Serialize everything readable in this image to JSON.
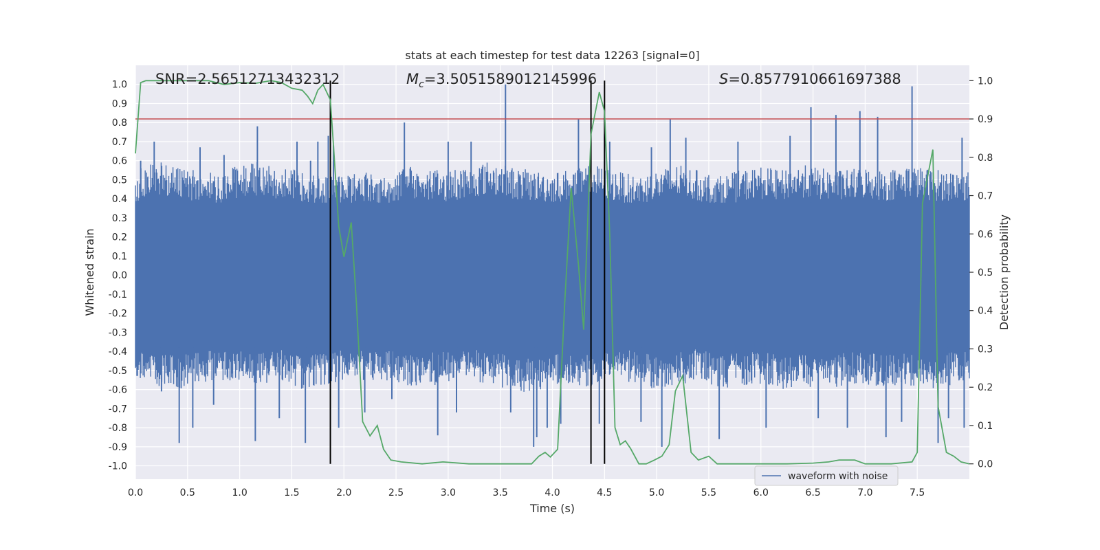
{
  "chart_data": {
    "type": "line",
    "title": "stats at each timestep for test data 12263 [signal=0]",
    "xlabel": "Time (s)",
    "ylabel": "Whitened strain",
    "y2label": "Detection probability",
    "xlim": [
      0.0,
      8.0
    ],
    "ylim": [
      -1.07,
      1.1
    ],
    "y2lim": [
      -0.04,
      1.04
    ],
    "xticks": [
      0.0,
      0.5,
      1.0,
      1.5,
      2.0,
      2.5,
      3.0,
      3.5,
      4.0,
      4.5,
      5.0,
      5.5,
      6.0,
      6.5,
      7.0,
      7.5
    ],
    "xtick_labels": [
      "0.0",
      "0.5",
      "1.0",
      "1.5",
      "2.0",
      "2.5",
      "3.0",
      "3.5",
      "4.0",
      "4.5",
      "5.0",
      "5.5",
      "6.0",
      "6.5",
      "7.0",
      "7.5"
    ],
    "yticks": [
      1.0,
      0.9,
      0.8,
      0.7,
      0.6,
      0.5,
      0.4,
      0.3,
      0.2,
      0.1,
      0.0,
      -0.1,
      -0.2,
      -0.3,
      -0.4,
      -0.5,
      -0.6,
      -0.7,
      -0.8,
      -0.9,
      -1.0
    ],
    "ytick_labels": [
      "1.0",
      "0.9",
      "0.8",
      "0.7",
      "0.6",
      "0.5",
      "0.4",
      "0.3",
      "0.2",
      "0.1",
      "0.0",
      "-0.1",
      "-0.2",
      "-0.3",
      "-0.4",
      "-0.5",
      "-0.6",
      "-0.7",
      "-0.8",
      "-0.9",
      "-1.0"
    ],
    "y2ticks": [
      1.0,
      0.9,
      0.8,
      0.7,
      0.6,
      0.5,
      0.4,
      0.3,
      0.2,
      0.1,
      0.0
    ],
    "y2tick_labels": [
      "1.0",
      "0.9",
      "0.8",
      "0.7",
      "0.6",
      "0.5",
      "0.4",
      "0.3",
      "0.2",
      "0.1",
      "0.0"
    ],
    "grid": true,
    "legend_position": "lower-right",
    "annotations": {
      "snr": "SNR=2.56512713432312",
      "mc_symbol": "M",
      "mc_sub": "c",
      "mc_value": "=3.5051589012145996",
      "s_symbol": "S",
      "s_value": "=0.8577910661697388"
    },
    "threshold": {
      "value": 0.9,
      "axis": "right",
      "color": "#c44e52"
    },
    "vertical_lines": [
      1.87,
      4.37,
      4.5
    ],
    "series": [
      {
        "name": "waveform with noise",
        "axis": "left",
        "color": "#4c72b0",
        "envelope_upper": [
          [
            0.0,
            0.55
          ],
          [
            0.2,
            0.6
          ],
          [
            0.4,
            0.57
          ],
          [
            0.6,
            0.55
          ],
          [
            0.8,
            0.54
          ],
          [
            1.0,
            0.58
          ],
          [
            1.2,
            0.6
          ],
          [
            1.4,
            0.56
          ],
          [
            1.6,
            0.55
          ],
          [
            1.8,
            0.52
          ],
          [
            2.0,
            0.53
          ],
          [
            2.2,
            0.55
          ],
          [
            2.4,
            0.52
          ],
          [
            2.6,
            0.57
          ],
          [
            2.8,
            0.56
          ],
          [
            3.0,
            0.55
          ],
          [
            3.2,
            0.58
          ],
          [
            3.4,
            0.6
          ],
          [
            3.6,
            0.57
          ],
          [
            3.8,
            0.55
          ],
          [
            4.0,
            0.54
          ],
          [
            4.2,
            0.56
          ],
          [
            4.4,
            0.58
          ],
          [
            4.6,
            0.55
          ],
          [
            4.8,
            0.52
          ],
          [
            5.0,
            0.55
          ],
          [
            5.2,
            0.58
          ],
          [
            5.4,
            0.55
          ],
          [
            5.6,
            0.52
          ],
          [
            5.8,
            0.55
          ],
          [
            6.0,
            0.57
          ],
          [
            6.2,
            0.55
          ],
          [
            6.4,
            0.58
          ],
          [
            6.6,
            0.56
          ],
          [
            6.8,
            0.55
          ],
          [
            7.0,
            0.57
          ],
          [
            7.2,
            0.55
          ],
          [
            7.4,
            0.58
          ],
          [
            7.6,
            0.56
          ],
          [
            7.8,
            0.55
          ],
          [
            8.0,
            0.55
          ]
        ],
        "envelope_lower": [
          [
            0.0,
            -0.55
          ],
          [
            0.2,
            -0.58
          ],
          [
            0.4,
            -0.6
          ],
          [
            0.6,
            -0.57
          ],
          [
            0.8,
            -0.55
          ],
          [
            1.0,
            -0.56
          ],
          [
            1.2,
            -0.58
          ],
          [
            1.4,
            -0.55
          ],
          [
            1.6,
            -0.6
          ],
          [
            1.8,
            -0.58
          ],
          [
            2.0,
            -0.55
          ],
          [
            2.2,
            -0.57
          ],
          [
            2.4,
            -0.55
          ],
          [
            2.6,
            -0.6
          ],
          [
            2.8,
            -0.58
          ],
          [
            3.0,
            -0.57
          ],
          [
            3.2,
            -0.55
          ],
          [
            3.4,
            -0.58
          ],
          [
            3.6,
            -0.6
          ],
          [
            3.8,
            -0.62
          ],
          [
            4.0,
            -0.58
          ],
          [
            4.2,
            -0.6
          ],
          [
            4.4,
            -0.58
          ],
          [
            4.6,
            -0.55
          ],
          [
            4.8,
            -0.57
          ],
          [
            5.0,
            -0.6
          ],
          [
            5.2,
            -0.58
          ],
          [
            5.4,
            -0.55
          ],
          [
            5.6,
            -0.6
          ],
          [
            5.8,
            -0.58
          ],
          [
            6.0,
            -0.57
          ],
          [
            6.2,
            -0.6
          ],
          [
            6.4,
            -0.58
          ],
          [
            6.6,
            -0.6
          ],
          [
            6.8,
            -0.58
          ],
          [
            7.0,
            -0.57
          ],
          [
            7.2,
            -0.6
          ],
          [
            7.4,
            -0.58
          ],
          [
            7.6,
            -0.6
          ],
          [
            7.8,
            -0.58
          ],
          [
            8.0,
            -0.57
          ]
        ],
        "spikes": [
          [
            0.05,
            0.6
          ],
          [
            0.18,
            0.7
          ],
          [
            0.25,
            -0.61
          ],
          [
            0.42,
            -0.88
          ],
          [
            0.55,
            -0.8
          ],
          [
            0.62,
            0.67
          ],
          [
            0.75,
            -0.68
          ],
          [
            0.85,
            0.63
          ],
          [
            1.17,
            0.78
          ],
          [
            1.15,
            -0.87
          ],
          [
            1.38,
            -0.75
          ],
          [
            1.55,
            0.7
          ],
          [
            1.63,
            -0.88
          ],
          [
            1.68,
            0.6
          ],
          [
            1.75,
            0.7
          ],
          [
            1.85,
            0.73
          ],
          [
            1.9,
            0.68
          ],
          [
            1.95,
            -0.8
          ],
          [
            2.2,
            -0.72
          ],
          [
            2.46,
            -0.65
          ],
          [
            2.58,
            0.8
          ],
          [
            2.9,
            -0.84
          ],
          [
            3.0,
            0.7
          ],
          [
            3.08,
            -0.72
          ],
          [
            3.22,
            0.7
          ],
          [
            3.55,
            1.0
          ],
          [
            3.6,
            -0.72
          ],
          [
            3.82,
            -0.9
          ],
          [
            3.85,
            -0.85
          ],
          [
            3.95,
            -0.8
          ],
          [
            4.08,
            -0.78
          ],
          [
            4.25,
            0.82
          ],
          [
            4.45,
            -0.78
          ],
          [
            4.5,
            0.74
          ],
          [
            4.55,
            0.7
          ],
          [
            4.85,
            -0.77
          ],
          [
            4.95,
            0.67
          ],
          [
            5.05,
            -0.9
          ],
          [
            5.13,
            0.82
          ],
          [
            5.28,
            0.72
          ],
          [
            5.6,
            -0.86
          ],
          [
            5.78,
            0.7
          ],
          [
            6.05,
            -0.8
          ],
          [
            6.28,
            0.73
          ],
          [
            6.48,
            0.88
          ],
          [
            6.55,
            -0.75
          ],
          [
            6.72,
            0.84
          ],
          [
            6.83,
            -0.8
          ],
          [
            6.95,
            0.86
          ],
          [
            7.12,
            0.83
          ],
          [
            7.2,
            -0.85
          ],
          [
            7.35,
            -0.77
          ],
          [
            7.45,
            0.99
          ],
          [
            7.7,
            -0.88
          ],
          [
            7.8,
            -0.75
          ],
          [
            7.93,
            0.72
          ],
          [
            7.95,
            -0.8
          ]
        ]
      },
      {
        "name": "detection probability",
        "axis": "right",
        "color": "#55a868",
        "points": [
          [
            0.0,
            0.81
          ],
          [
            0.05,
            0.995
          ],
          [
            0.1,
            1.0
          ],
          [
            0.3,
            1.0
          ],
          [
            0.5,
            1.0
          ],
          [
            0.7,
            1.0
          ],
          [
            0.85,
            0.99
          ],
          [
            1.0,
            0.995
          ],
          [
            1.15,
            0.993
          ],
          [
            1.3,
            1.0
          ],
          [
            1.4,
            0.995
          ],
          [
            1.5,
            0.98
          ],
          [
            1.6,
            0.975
          ],
          [
            1.65,
            0.96
          ],
          [
            1.7,
            0.94
          ],
          [
            1.75,
            0.975
          ],
          [
            1.8,
            0.99
          ],
          [
            1.87,
            0.95
          ],
          [
            1.9,
            0.83
          ],
          [
            1.95,
            0.62
          ],
          [
            2.0,
            0.54
          ],
          [
            2.07,
            0.63
          ],
          [
            2.12,
            0.42
          ],
          [
            2.18,
            0.11
          ],
          [
            2.25,
            0.073
          ],
          [
            2.32,
            0.1
          ],
          [
            2.38,
            0.038
          ],
          [
            2.45,
            0.01
          ],
          [
            2.55,
            0.005
          ],
          [
            2.75,
            0.0
          ],
          [
            2.95,
            0.005
          ],
          [
            3.2,
            0.0
          ],
          [
            3.5,
            0.0
          ],
          [
            3.8,
            0.0
          ],
          [
            3.87,
            0.02
          ],
          [
            3.93,
            0.03
          ],
          [
            3.98,
            0.018
          ],
          [
            4.05,
            0.038
          ],
          [
            4.12,
            0.43
          ],
          [
            4.18,
            0.72
          ],
          [
            4.25,
            0.52
          ],
          [
            4.3,
            0.35
          ],
          [
            4.37,
            0.86
          ],
          [
            4.45,
            0.97
          ],
          [
            4.5,
            0.92
          ],
          [
            4.55,
            0.6
          ],
          [
            4.6,
            0.095
          ],
          [
            4.65,
            0.05
          ],
          [
            4.7,
            0.06
          ],
          [
            4.75,
            0.04
          ],
          [
            4.83,
            0.0
          ],
          [
            4.9,
            0.0
          ],
          [
            4.98,
            0.01
          ],
          [
            5.05,
            0.02
          ],
          [
            5.12,
            0.05
          ],
          [
            5.18,
            0.19
          ],
          [
            5.25,
            0.23
          ],
          [
            5.33,
            0.03
          ],
          [
            5.4,
            0.01
          ],
          [
            5.5,
            0.02
          ],
          [
            5.58,
            0.0
          ],
          [
            5.75,
            0.0
          ],
          [
            6.0,
            0.0
          ],
          [
            6.25,
            0.0
          ],
          [
            6.5,
            0.002
          ],
          [
            6.65,
            0.005
          ],
          [
            6.75,
            0.01
          ],
          [
            6.9,
            0.01
          ],
          [
            7.0,
            0.0
          ],
          [
            7.25,
            0.0
          ],
          [
            7.45,
            0.005
          ],
          [
            7.5,
            0.03
          ],
          [
            7.55,
            0.68
          ],
          [
            7.6,
            0.75
          ],
          [
            7.65,
            0.82
          ],
          [
            7.7,
            0.15
          ],
          [
            7.78,
            0.03
          ],
          [
            7.85,
            0.02
          ],
          [
            7.92,
            0.005
          ],
          [
            8.0,
            0.0
          ]
        ]
      }
    ]
  }
}
